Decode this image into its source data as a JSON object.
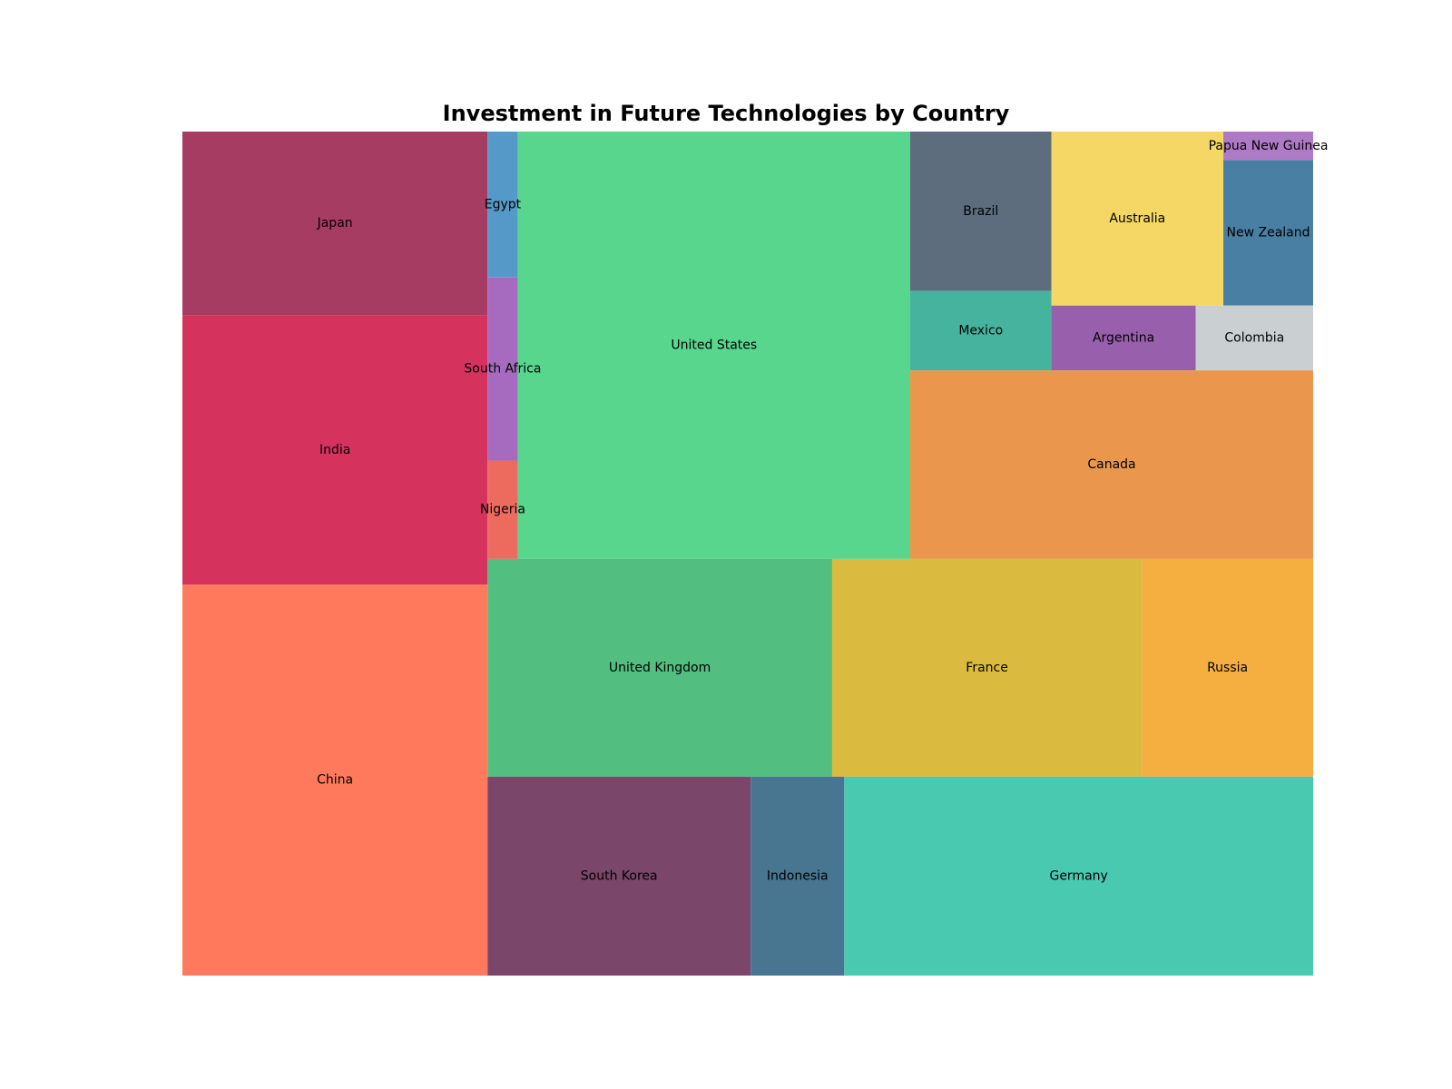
{
  "chart_data": {
    "type": "treemap",
    "title": "Investment in Future Technologies by Country",
    "items": [
      {
        "label": "China",
        "value": 1160,
        "color": "#FF7A5C"
      },
      {
        "label": "India",
        "value": 800,
        "color": "#D5335E"
      },
      {
        "label": "Japan",
        "value": 545,
        "color": "#A63C62"
      },
      {
        "label": "Egypt",
        "value": 43,
        "color": "#5599C8"
      },
      {
        "label": "South Africa",
        "value": 54,
        "color": "#A66BBE"
      },
      {
        "label": "Nigeria",
        "value": 29,
        "color": "#EC6B5E"
      },
      {
        "label": "United States",
        "value": 1631,
        "color": "#58D68D"
      },
      {
        "label": "United Kingdom",
        "value": 730,
        "color": "#52BE80"
      },
      {
        "label": "France",
        "value": 656,
        "color": "#DBBB3F"
      },
      {
        "label": "Russia",
        "value": 363,
        "color": "#F5AF41"
      },
      {
        "label": "South Korea",
        "value": 509,
        "color": "#7A4669"
      },
      {
        "label": "Indonesia",
        "value": 181,
        "color": "#48758F"
      },
      {
        "label": "Germany",
        "value": 907,
        "color": "#48C9B0"
      },
      {
        "label": "Brazil",
        "value": 219,
        "color": "#5D6D7E"
      },
      {
        "label": "Mexico",
        "value": 109,
        "color": "#45B39D"
      },
      {
        "label": "Australia",
        "value": 291,
        "color": "#F4D764"
      },
      {
        "label": "Papua New Guinea",
        "value": 25,
        "color": "#AF7AC5"
      },
      {
        "label": "New Zealand",
        "value": 127,
        "color": "#4A7FA4"
      },
      {
        "label": "Argentina",
        "value": 91,
        "color": "#985FAC"
      },
      {
        "label": "Colombia",
        "value": 74,
        "color": "#CACFD2"
      },
      {
        "label": "Canada",
        "value": 739,
        "color": "#EA974D"
      }
    ]
  }
}
